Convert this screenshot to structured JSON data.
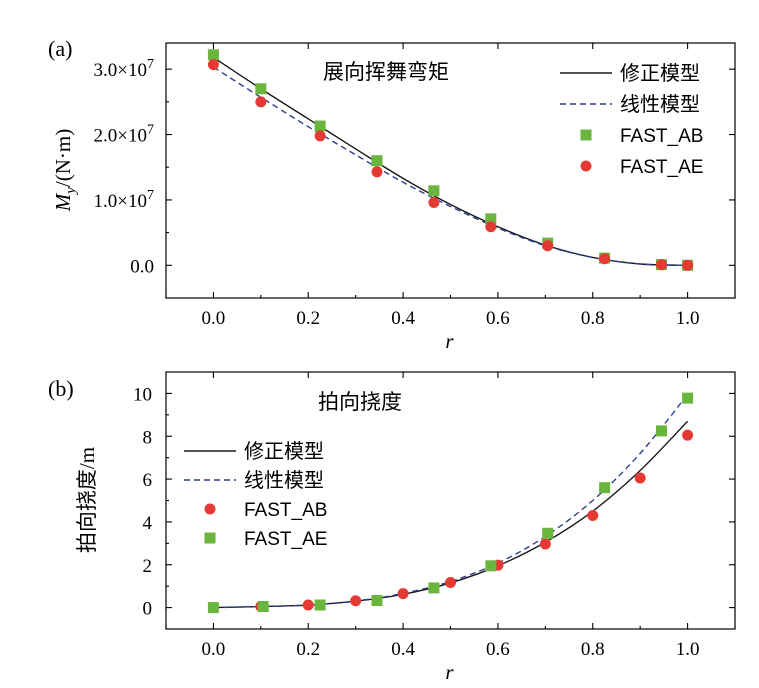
{
  "chart_data": [
    {
      "type": "line",
      "panel_label": "(a)",
      "title": "展向挥舞弯矩",
      "xlabel": "r",
      "ylabel_main": "M",
      "ylabel_sub": "y",
      "ylabel_unit": "/(N·m)",
      "xlim": [
        -0.1,
        1.1
      ],
      "ylim": [
        -0.5,
        3.4
      ],
      "xticks": [
        0.0,
        0.2,
        0.4,
        0.6,
        0.8,
        1.0
      ],
      "xtick_labels": [
        "0.0",
        "0.2",
        "0.4",
        "0.6",
        "0.8",
        "1.0"
      ],
      "yticks": [
        0.0,
        1.0,
        2.0,
        3.0
      ],
      "ytick_labels": [
        {
          "base": "0.0",
          "exp": ""
        },
        {
          "base": "1.0×10",
          "exp": "7"
        },
        {
          "base": "2.0×10",
          "exp": "7"
        },
        {
          "base": "3.0×10",
          "exp": "7"
        }
      ],
      "y_scale_note": "values in units of 1e7 N·m",
      "legend_position": "top-right",
      "series": [
        {
          "name": "修正模型",
          "style": "solid",
          "color": "#1a1a1a",
          "x": [
            0.0,
            0.1,
            0.2,
            0.3,
            0.4,
            0.5,
            0.6,
            0.7,
            0.8,
            0.9,
            1.0
          ],
          "y": [
            3.18,
            2.7,
            2.24,
            1.78,
            1.33,
            0.93,
            0.59,
            0.31,
            0.12,
            0.02,
            0.0
          ]
        },
        {
          "name": "线性模型",
          "style": "dashed",
          "color": "#2f3f8f",
          "x": [
            0.0,
            0.1,
            0.2,
            0.3,
            0.4,
            0.5,
            0.6,
            0.7,
            0.8,
            0.9,
            1.0
          ],
          "y": [
            3.03,
            2.57,
            2.12,
            1.69,
            1.27,
            0.9,
            0.57,
            0.3,
            0.12,
            0.02,
            0.0
          ]
        },
        {
          "name": "FAST_AB",
          "style": "square",
          "color": "#6ab53e",
          "x": [
            0.0,
            0.1,
            0.225,
            0.345,
            0.465,
            0.585,
            0.705,
            0.825,
            0.945,
            1.0
          ],
          "y": [
            3.22,
            2.7,
            2.13,
            1.6,
            1.14,
            0.71,
            0.34,
            0.11,
            0.01,
            0.0
          ]
        },
        {
          "name": "FAST_AE",
          "style": "circle",
          "color": "#e53a33",
          "x": [
            0.0,
            0.1,
            0.225,
            0.345,
            0.465,
            0.585,
            0.705,
            0.825,
            0.945,
            1.0
          ],
          "y": [
            3.07,
            2.5,
            1.98,
            1.43,
            0.96,
            0.59,
            0.3,
            0.1,
            0.01,
            0.0
          ]
        }
      ]
    },
    {
      "type": "line",
      "panel_label": "(b)",
      "title": "拍向挠度",
      "xlabel": "r",
      "ylabel": "拍向挠度/m",
      "xlim": [
        -0.1,
        1.1
      ],
      "ylim": [
        -1.0,
        11.0
      ],
      "xticks": [
        0.0,
        0.2,
        0.4,
        0.6,
        0.8,
        1.0
      ],
      "xtick_labels": [
        "0.0",
        "0.2",
        "0.4",
        "0.6",
        "0.8",
        "1.0"
      ],
      "yticks": [
        0,
        2,
        4,
        6,
        8,
        10
      ],
      "ytick_labels": [
        "0",
        "2",
        "4",
        "6",
        "8",
        "10"
      ],
      "legend_position": "top-left",
      "series": [
        {
          "name": "修正模型",
          "style": "solid",
          "color": "#1a1a1a",
          "x": [
            0.0,
            0.1,
            0.2,
            0.3,
            0.4,
            0.5,
            0.6,
            0.7,
            0.8,
            0.9,
            1.0
          ],
          "y": [
            0.0,
            0.05,
            0.12,
            0.3,
            0.62,
            1.15,
            1.95,
            3.05,
            4.5,
            6.4,
            8.7
          ]
        },
        {
          "name": "线性模型",
          "style": "dashed",
          "color": "#2f3f8f",
          "x": [
            0.0,
            0.1,
            0.2,
            0.3,
            0.4,
            0.5,
            0.6,
            0.7,
            0.8,
            0.9,
            1.0
          ],
          "y": [
            0.0,
            0.05,
            0.12,
            0.31,
            0.66,
            1.22,
            2.08,
            3.32,
            5.0,
            7.2,
            9.95
          ]
        },
        {
          "name": "FAST_AB",
          "style": "circle",
          "color": "#e53a33",
          "x": [
            0.0,
            0.1,
            0.2,
            0.3,
            0.4,
            0.5,
            0.6,
            0.7,
            0.8,
            0.9,
            1.0
          ],
          "y": [
            0.0,
            0.05,
            0.12,
            0.32,
            0.65,
            1.17,
            1.98,
            2.97,
            4.3,
            6.05,
            8.05
          ]
        },
        {
          "name": "FAST_AE",
          "style": "square",
          "color": "#6ab53e",
          "x": [
            0.0,
            0.105,
            0.225,
            0.345,
            0.465,
            0.585,
            0.705,
            0.825,
            0.945,
            1.0
          ],
          "y": [
            0.0,
            0.05,
            0.12,
            0.33,
            0.92,
            1.95,
            3.47,
            5.6,
            8.25,
            9.78
          ]
        }
      ]
    }
  ]
}
